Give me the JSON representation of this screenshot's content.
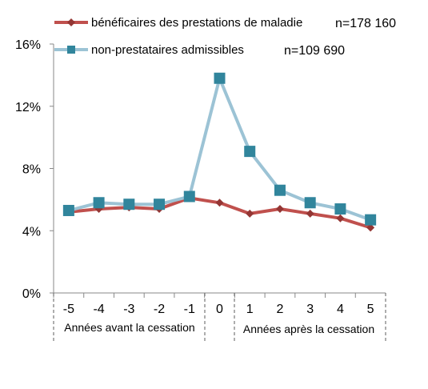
{
  "chart_data": {
    "type": "line",
    "categories": [
      "-5",
      "-4",
      "-3",
      "-2",
      "-1",
      "0",
      "1",
      "2",
      "3",
      "4",
      "5"
    ],
    "ylim": [
      0,
      16
    ],
    "yticks": [
      "0%",
      "4%",
      "8%",
      "12%",
      "16%"
    ],
    "series": [
      {
        "name": "bénéficaires des prestations de maladie",
        "n_label": "n=178 160",
        "color": "#c0504d",
        "marker": "diamond",
        "values": [
          5.2,
          5.4,
          5.5,
          5.4,
          6.1,
          5.8,
          5.1,
          5.4,
          5.1,
          4.8,
          4.2
        ]
      },
      {
        "name": "non-prestataires admissibles",
        "n_label": "n=109 690",
        "color": "#9cc3d5",
        "marker_color": "#31859c",
        "marker": "square",
        "values": [
          5.3,
          5.8,
          5.7,
          5.7,
          6.2,
          13.8,
          9.1,
          6.6,
          5.8,
          5.4,
          4.7
        ]
      }
    ],
    "group_labels": {
      "before": "Années avant la cessation",
      "after": "Années après la cessation"
    },
    "grid": false,
    "legend": "top"
  }
}
